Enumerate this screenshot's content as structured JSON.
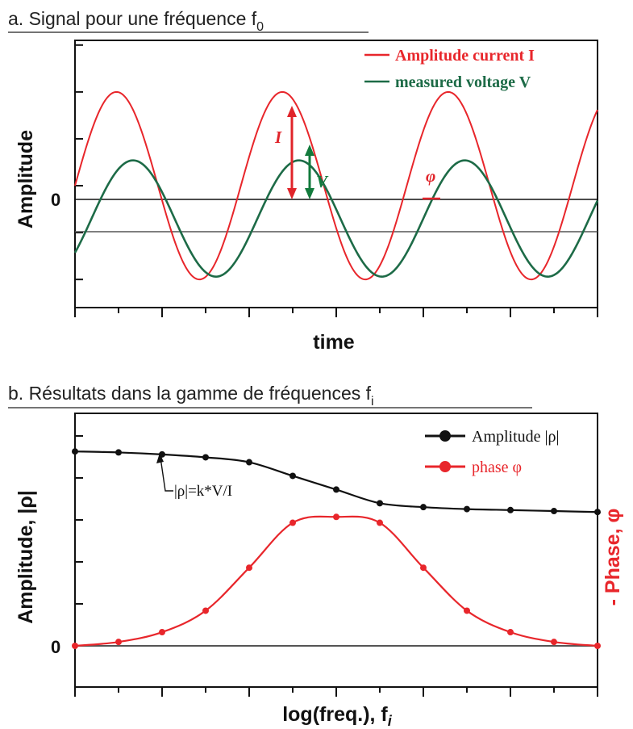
{
  "colors": {
    "red": "#e8262b",
    "green": "#1d6b47",
    "arrowRed": "#e0242a",
    "arrowGreen": "#127a3c",
    "black": "#111111",
    "gray": "#555555"
  },
  "chart_data": [
    {
      "type": "line",
      "title": "a. Signal pour une fréquence f",
      "title_subscript": "0",
      "xlabel": "time",
      "ylabel": "Amplitude",
      "zero_label": "0",
      "ylim": [
        -1.3,
        1.55
      ],
      "xlim": [
        0,
        3.15
      ],
      "legend": [
        {
          "name": "Amplitude current I",
          "color": "#e8262b"
        },
        {
          "name": "measured voltage V",
          "color": "#1d6b47"
        }
      ],
      "legend_position": "top-right",
      "series": [
        {
          "name": "Amplitude current I",
          "amplitude": 1.0,
          "offset": 0.0,
          "period": 1.0,
          "phase_shift": 0.0
        },
        {
          "name": "measured voltage V",
          "amplitude": 0.62,
          "offset": -0.35,
          "period": 1.0,
          "phase_shift": 0.1
        }
      ],
      "annotations": {
        "current": "I",
        "voltage": "V",
        "phase": "φ"
      }
    },
    {
      "type": "line",
      "title": "b. Résultats dans la gamme de fréquences f",
      "title_subscript": "i",
      "xlabel": "log(freq.), f",
      "xlabel_subscript": "i",
      "ylabel": "Amplitude,  |ρ|",
      "ylabel_right": "- Phase, φ",
      "zero_label": "0",
      "ylim": [
        0,
        1.0
      ],
      "legend": [
        {
          "name": "Amplitude |ρ|",
          "color": "#111111"
        },
        {
          "name": "phase φ",
          "color": "#e8262b"
        }
      ],
      "legend_position": "top-right",
      "annotation": "|ρ|=k*V/I",
      "series": [
        {
          "name": "Amplitude |ρ|",
          "x": [
            0,
            1,
            2,
            3,
            4,
            5,
            6,
            7,
            8,
            9,
            10,
            11,
            12
          ],
          "y": [
            0.995,
            0.99,
            0.98,
            0.965,
            0.94,
            0.87,
            0.8,
            0.73,
            0.71,
            0.7,
            0.695,
            0.69,
            0.685
          ]
        },
        {
          "name": "phase φ",
          "x": [
            0,
            1,
            2,
            3,
            4,
            5,
            6,
            7,
            8,
            9,
            10,
            11,
            12
          ],
          "y": [
            0.0,
            0.02,
            0.07,
            0.18,
            0.4,
            0.63,
            0.66,
            0.63,
            0.4,
            0.18,
            0.07,
            0.02,
            0.0
          ]
        }
      ]
    }
  ]
}
